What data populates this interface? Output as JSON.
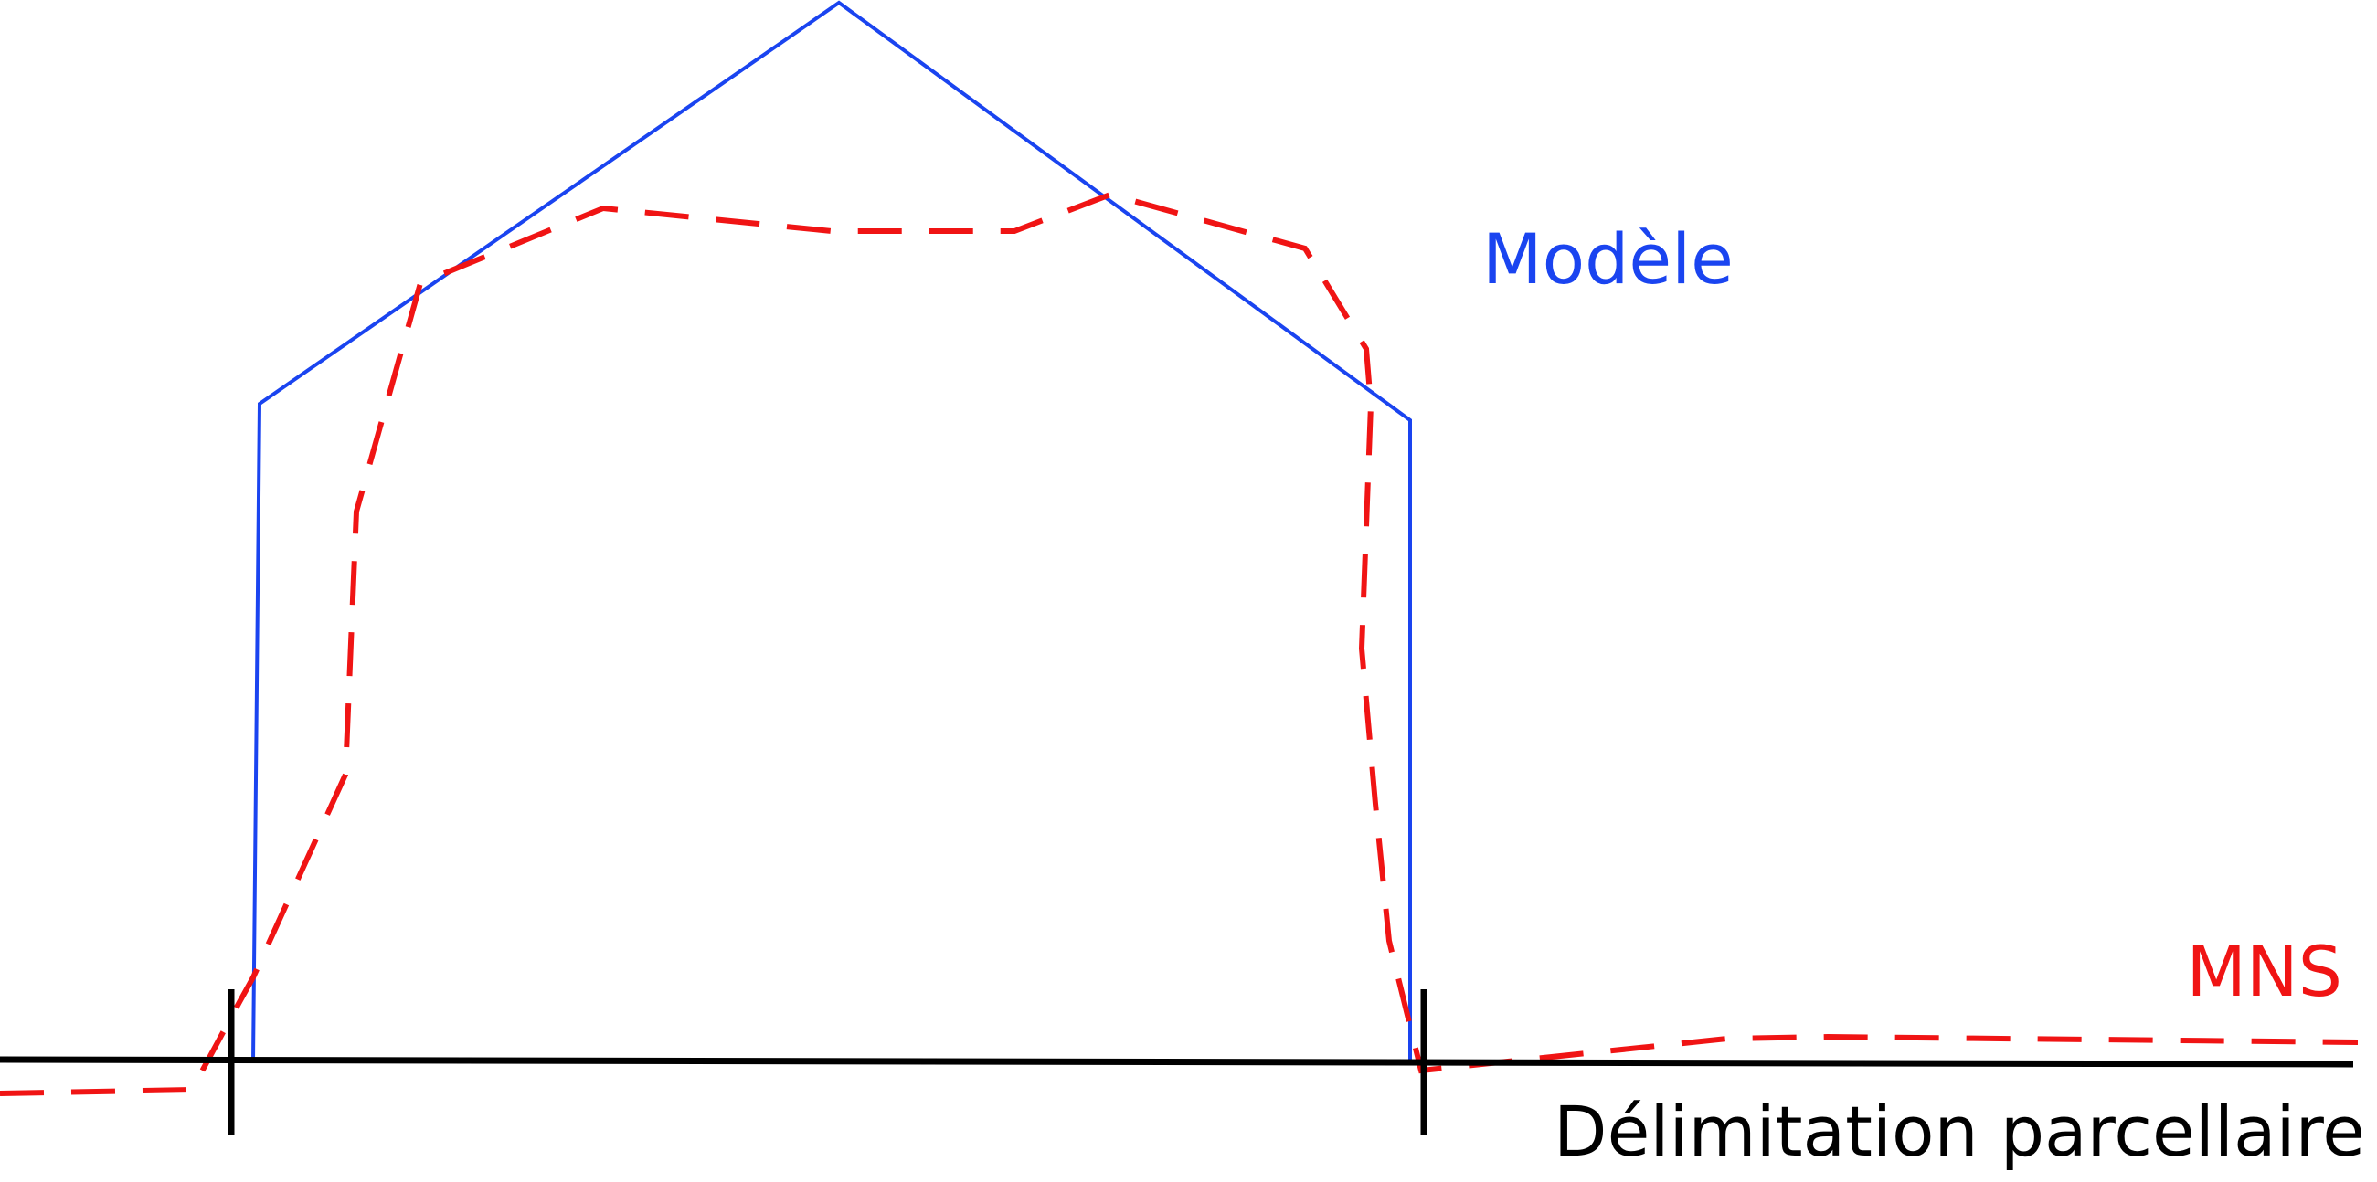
{
  "labels": {
    "model": "Modèle",
    "mns": "MNS",
    "boundary": "Délimitation parcellaire"
  },
  "colors": {
    "model": "#1a44f0",
    "mns": "#f01414",
    "boundary": "#000000",
    "background": "#ffffff"
  }
}
